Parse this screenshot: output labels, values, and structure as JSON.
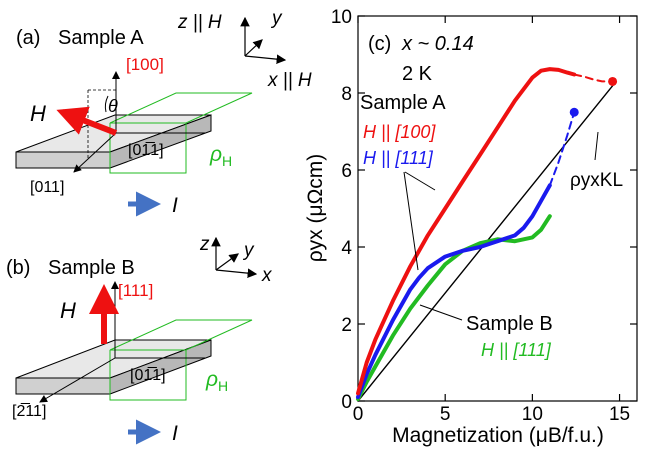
{
  "panels": {
    "a": {
      "label": "(a)",
      "title": "Sample A",
      "axis_z": "z || H",
      "axis_y": "y",
      "axis_x": "x || H",
      "dir_100": "[100]",
      "dir_0m11": "[01̅1]",
      "dir_011": "[011]",
      "theta": "θ",
      "field": "H",
      "rho": "ρ",
      "rho_sub": "H",
      "current": "I"
    },
    "b": {
      "label": "(b)",
      "title": "Sample B",
      "axis_z": "z",
      "axis_y": "y",
      "axis_x": "x",
      "dir_111": "[111]",
      "dir_0m11": "[01̅1]",
      "dir_m211": "[2̅11]",
      "field": "H",
      "rho": "ρ",
      "rho_sub": "H",
      "current": "I"
    }
  },
  "colors": {
    "red": "#ee1111",
    "blue": "#1a1aee",
    "green": "#22bb22",
    "arrow_blue": "#4472c4",
    "black": "#000000"
  },
  "chart_data": {
    "type": "line",
    "panel_label": "(c)",
    "annotation_x": "x ~ 0.14",
    "annotation_T": "2 K",
    "xlabel": "Magnetization (μB/f.u.)",
    "ylabel": "ρyx (μΩcm)",
    "xlim": [
      0,
      16
    ],
    "ylim": [
      0,
      10
    ],
    "xticks": [
      0,
      5,
      10,
      15
    ],
    "yticks": [
      0,
      2,
      4,
      6,
      8,
      10
    ],
    "grid": false,
    "labels": {
      "sample_a": "Sample A",
      "sample_a_h100": "H || [100]",
      "sample_a_h111": "H || [111]",
      "sample_b": "Sample B",
      "sample_b_h111": "H || [111]",
      "kl": "ρyxKL"
    },
    "series": [
      {
        "name": "H || [100]",
        "color": "#ee1111",
        "x": [
          0,
          0.5,
          1,
          2,
          3,
          4,
          5,
          6,
          7,
          8,
          9,
          10,
          10.5,
          11,
          11.5,
          12,
          12.4
        ],
        "y": [
          0.2,
          1.0,
          1.6,
          2.6,
          3.5,
          4.3,
          5.0,
          5.7,
          6.4,
          7.1,
          7.8,
          8.4,
          8.58,
          8.62,
          8.6,
          8.53,
          8.48
        ]
      },
      {
        "name": "H || [100] (extrapolated)",
        "color": "#ee1111",
        "style": "dashed",
        "x": [
          12.4,
          13,
          13.5,
          14,
          14.6
        ],
        "y": [
          8.48,
          8.42,
          8.35,
          8.3,
          8.3
        ]
      },
      {
        "name": "H || [111] (Sample A)",
        "color": "#1a1aee",
        "x": [
          0,
          0.5,
          1,
          2,
          3,
          3.5,
          4,
          5,
          6,
          7,
          8,
          9,
          9.5,
          10,
          10.5,
          11
        ],
        "y": [
          0.1,
          0.7,
          1.2,
          2.1,
          2.9,
          3.2,
          3.45,
          3.75,
          3.9,
          4.0,
          4.15,
          4.3,
          4.5,
          4.8,
          5.2,
          5.6
        ]
      },
      {
        "name": "H || [111] (Sample A, extrapolated)",
        "color": "#1a1aee",
        "style": "dashed",
        "x": [
          11,
          11.5,
          12,
          12.4
        ],
        "y": [
          5.6,
          6.2,
          6.9,
          7.5
        ]
      },
      {
        "name": "H || [111] (Sample B)",
        "color": "#22bb22",
        "x": [
          0,
          0.5,
          1,
          2,
          3,
          4,
          5,
          6,
          7,
          8,
          9,
          10,
          10.5,
          11
        ],
        "y": [
          0.05,
          0.5,
          0.9,
          1.7,
          2.4,
          3.0,
          3.55,
          3.9,
          4.1,
          4.2,
          4.15,
          4.25,
          4.45,
          4.8
        ]
      },
      {
        "name": "ρyxKL",
        "color": "#000000",
        "x": [
          0,
          14.8
        ],
        "y": [
          0,
          8.3
        ]
      }
    ],
    "markers": [
      {
        "series": "H || [100]",
        "x": 14.6,
        "y": 8.3,
        "color": "#ee1111"
      },
      {
        "series": "H || [111] (Sample A)",
        "x": 12.4,
        "y": 7.5,
        "color": "#1a1aee"
      }
    ]
  }
}
